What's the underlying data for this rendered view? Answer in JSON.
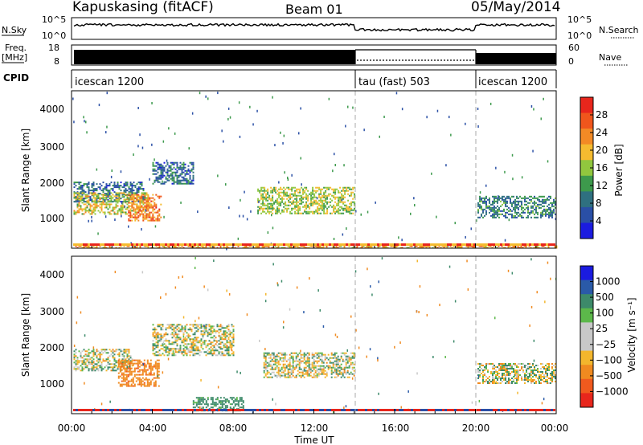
{
  "header": {
    "station": "Kapuskasing (fitACF)",
    "beam": "Beam 01",
    "date": "05/May/2014"
  },
  "strips": {
    "nsky_label": "N.Sky",
    "nsky_ticks": [
      "10^5",
      "10^0"
    ],
    "nsearch_label": "N.Search",
    "nsearch_ticks": [
      "10^5",
      "10^0"
    ],
    "freq_label": "Freq.",
    "freq_unit": "[MHz]",
    "freq_ticks": [
      "18",
      "8"
    ],
    "nave_label": "Nave",
    "nave_ticks": [
      "60",
      "0"
    ],
    "cpid_label": "CPID",
    "cpid_segments": [
      {
        "label": "icescan 1200",
        "start_hour": 0,
        "end_hour": 14
      },
      {
        "label": "tau (fast) 503",
        "start_hour": 14,
        "end_hour": 20
      },
      {
        "label": "icescan 1200",
        "start_hour": 20,
        "end_hour": 24
      }
    ]
  },
  "power_panel": {
    "ylabel": "Slant Range [km]",
    "yticks": [
      "4000",
      "3000",
      "2000",
      "1000"
    ],
    "colorbar_label": "Power [dB]",
    "colorbar_ticks": [
      "28",
      "24",
      "20",
      "16",
      "12",
      "8",
      "4"
    ],
    "colors": [
      "#e8261c",
      "#f0561c",
      "#f38a25",
      "#f5bb30",
      "#91c73e",
      "#3d9a4c",
      "#2f7080",
      "#2a4fa6",
      "#1b1be0"
    ]
  },
  "velocity_panel": {
    "ylabel": "Slant Range [km]",
    "yticks": [
      "4000",
      "3000",
      "2000",
      "1000"
    ],
    "colorbar_label": "Velocity [m s⁻¹]",
    "colorbar_ticks": [
      "1000",
      "500",
      "100",
      "25",
      "−25",
      "−100",
      "−500",
      "−1000"
    ],
    "colors": [
      "#1b1be0",
      "#2a5aa8",
      "#3d8a6a",
      "#5cb84a",
      "#c8c8c8",
      "#c8c8c8",
      "#f3b62d",
      "#f08a20",
      "#f05a1e",
      "#e8261c"
    ]
  },
  "x_axis": {
    "ticks": [
      "00:00",
      "04:00",
      "08:00",
      "12:00",
      "16:00",
      "20:00",
      "00:00"
    ],
    "label": "Time UT"
  },
  "chart_data": {
    "type": "heatmap",
    "title": "Kapuskasing (fitACF) Beam 01 05/May/2014",
    "xlabel": "Time UT",
    "ylabel": "Slant Range [km]",
    "x_range_hours": [
      0,
      24
    ],
    "y_range_km": [
      180,
      4600
    ],
    "mode_changes_hours": [
      14,
      20
    ],
    "power_regions": [
      {
        "t_start": 0.1,
        "t_end": 3.6,
        "r_min": 1500,
        "r_max": 2050,
        "power_db": 8
      },
      {
        "t_start": 0.1,
        "t_end": 3.8,
        "r_min": 1150,
        "r_max": 1750,
        "power_db": 18
      },
      {
        "t_start": 2.8,
        "t_end": 4.4,
        "r_min": 950,
        "r_max": 1700,
        "power_db": 24
      },
      {
        "t_start": 4.0,
        "t_end": 6.0,
        "r_min": 2000,
        "r_max": 2600,
        "power_db": 8
      },
      {
        "t_start": 9.2,
        "t_end": 14.0,
        "r_min": 1150,
        "r_max": 1900,
        "power_db": 16
      },
      {
        "t_start": 20.1,
        "t_end": 24.0,
        "r_min": 1050,
        "r_max": 1650,
        "power_db": 10
      },
      {
        "t_start": 0.1,
        "t_end": 24.0,
        "r_min": 180,
        "r_max": 260,
        "power_db": 22
      }
    ],
    "velocity_regions": [
      {
        "t_start": 0.1,
        "t_end": 3.0,
        "r_min": 1400,
        "r_max": 2000,
        "velocity_ms": 0
      },
      {
        "t_start": 2.3,
        "t_end": 4.3,
        "r_min": 950,
        "r_max": 1700,
        "velocity_ms": -300
      },
      {
        "t_start": 4.0,
        "t_end": 8.0,
        "r_min": 1800,
        "r_max": 2700,
        "velocity_ms": 0
      },
      {
        "t_start": 6.0,
        "t_end": 8.5,
        "r_min": 250,
        "r_max": 650,
        "velocity_ms": 150
      },
      {
        "t_start": 9.5,
        "t_end": 14.0,
        "r_min": 1200,
        "r_max": 1900,
        "velocity_ms": 0
      },
      {
        "t_start": 20.1,
        "t_end": 24.0,
        "r_min": 1050,
        "r_max": 1600,
        "velocity_ms": 0
      }
    ]
  }
}
